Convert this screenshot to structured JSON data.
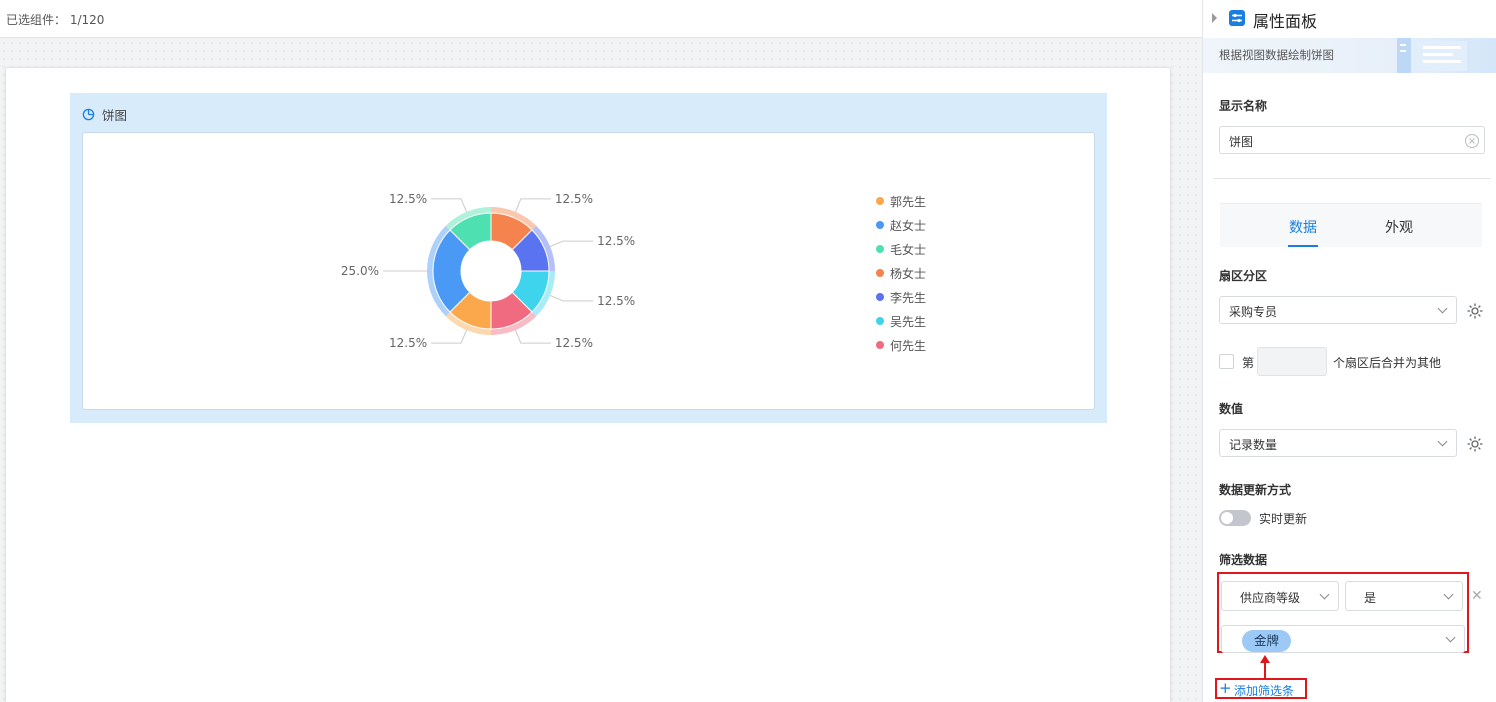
{
  "topbar": {
    "selected": "已选组件： 1/120"
  },
  "widget": {
    "title": "饼图"
  },
  "chart_data": {
    "type": "pie",
    "labels": [
      "郭先生",
      "赵女士",
      "毛女士",
      "杨女士",
      "李先生",
      "吴先生",
      "何先生"
    ],
    "slices": [
      {
        "name": "杨女士",
        "value": 12.5,
        "color": "#f5834d"
      },
      {
        "name": "李先生",
        "value": 12.5,
        "color": "#5a73f0"
      },
      {
        "name": "吴先生",
        "value": 12.5,
        "color": "#3ed4ee"
      },
      {
        "name": "何先生",
        "value": 12.5,
        "color": "#f06b7f"
      },
      {
        "name": "郭先生",
        "value": 12.5,
        "color": "#fba84d"
      },
      {
        "name": "赵女士",
        "value": 25.0,
        "color": "#4a99f5"
      },
      {
        "name": "毛女士",
        "value": 12.5,
        "color": "#4ee0b0"
      }
    ],
    "slice_labels": [
      "12.5%",
      "12.5%",
      "12.5%",
      "12.5%",
      "12.5%",
      "25.0%",
      "12.5%"
    ],
    "legend": [
      {
        "name": "郭先生",
        "color": "#fba84d"
      },
      {
        "name": "赵女士",
        "color": "#4a99f5"
      },
      {
        "name": "毛女士",
        "color": "#4ee0b0"
      },
      {
        "name": "杨女士",
        "color": "#f5834d"
      },
      {
        "name": "李先生",
        "color": "#5a73f0"
      },
      {
        "name": "吴先生",
        "color": "#3ed4ee"
      },
      {
        "name": "何先生",
        "color": "#f06b7f"
      }
    ],
    "legend_position": "right"
  },
  "panel": {
    "title": "属性面板",
    "description": "根据视图数据绘制饼图",
    "display_name_label": "显示名称",
    "display_name_value": "饼图",
    "tabs": [
      "数据",
      "外观"
    ],
    "sector_label": "扇区分区",
    "sector_value": "采购专员",
    "merge_prefix": "第",
    "merge_suffix": "个扇区后合并为其他",
    "value_label": "数值",
    "value_value": "记录数量",
    "update_label": "数据更新方式",
    "update_option": "实时更新",
    "filter_label": "筛选数据",
    "filter_field": "供应商等级",
    "filter_op": "是",
    "filter_tag": "金牌",
    "add_filter": "添加筛选条件",
    "icons": [
      "caret-right-icon",
      "settings-panel-icon",
      "clear-icon",
      "gear-icon",
      "close-icon",
      "plus-icon"
    ]
  }
}
